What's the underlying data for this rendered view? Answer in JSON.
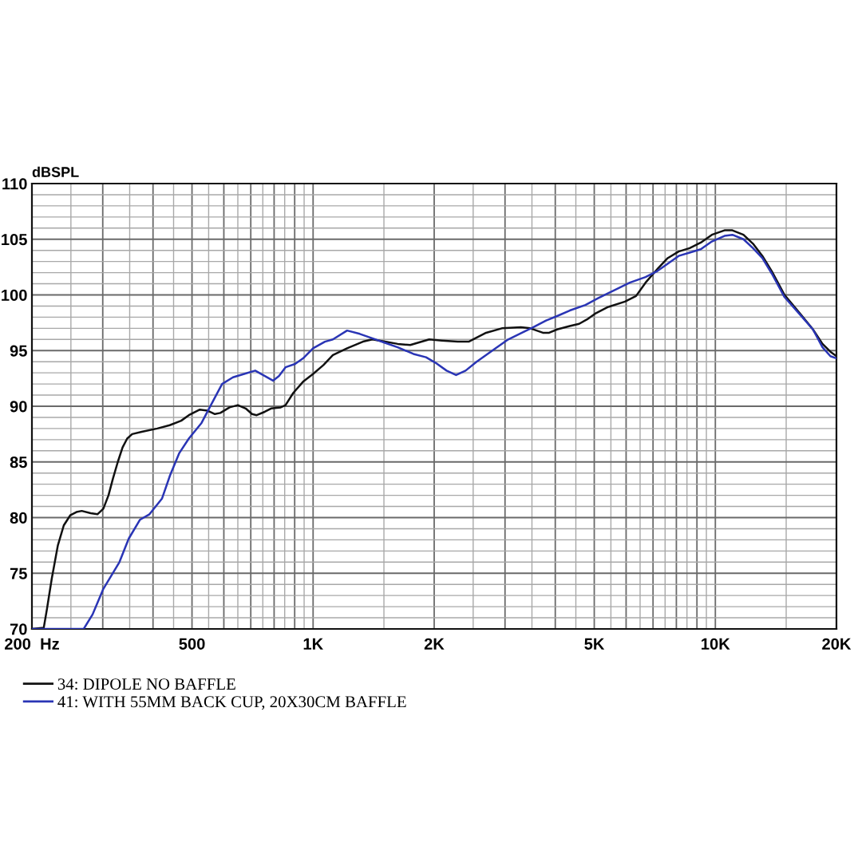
{
  "chart_data": {
    "type": "line",
    "ylabel": "dBSPL",
    "log": "x",
    "xlim": [
      200,
      20000
    ],
    "ylim": [
      70,
      110
    ],
    "xticks": [
      {
        "value": 200,
        "label": "200  Hz"
      },
      {
        "value": 250,
        "label": null
      },
      {
        "value": 300,
        "label": null
      },
      {
        "value": 350,
        "label": null
      },
      {
        "value": 400,
        "label": null
      },
      {
        "value": 450,
        "label": null
      },
      500,
      {
        "value": 550,
        "label": null
      },
      {
        "value": 600,
        "label": null
      },
      {
        "value": 650,
        "label": null
      },
      {
        "value": 700,
        "label": null
      },
      {
        "value": 750,
        "label": null
      },
      {
        "value": 800,
        "label": null
      },
      {
        "value": 850,
        "label": null
      },
      {
        "value": 900,
        "label": null
      },
      {
        "value": 950,
        "label": null
      },
      {
        "value": 1000,
        "label": "1K"
      },
      {
        "value": 1500,
        "label": null
      },
      {
        "value": 2000,
        "label": "2K"
      },
      {
        "value": 2500,
        "label": null
      },
      {
        "value": 3000,
        "label": null
      },
      {
        "value": 3500,
        "label": null
      },
      {
        "value": 4000,
        "label": null
      },
      {
        "value": 4500,
        "label": null
      },
      {
        "value": 5000,
        "label": "5K"
      },
      {
        "value": 5500,
        "label": null
      },
      {
        "value": 6000,
        "label": null
      },
      {
        "value": 6500,
        "label": null
      },
      {
        "value": 7000,
        "label": null
      },
      {
        "value": 7500,
        "label": null
      },
      {
        "value": 8000,
        "label": null
      },
      {
        "value": 8500,
        "label": null
      },
      {
        "value": 9000,
        "label": null
      },
      {
        "value": 9500,
        "label": null
      },
      {
        "value": 10000,
        "label": "10K"
      },
      {
        "value": 15000,
        "label": null
      },
      {
        "value": 20000,
        "label": "20K"
      }
    ],
    "yticks": [
      70,
      {
        "value": 71,
        "label": null
      },
      {
        "value": 72,
        "label": null
      },
      {
        "value": 73,
        "label": null
      },
      {
        "value": 74,
        "label": null
      },
      75,
      {
        "value": 76,
        "label": null
      },
      {
        "value": 77,
        "label": null
      },
      {
        "value": 78,
        "label": null
      },
      {
        "value": 79,
        "label": null
      },
      80,
      {
        "value": 81,
        "label": null
      },
      {
        "value": 82,
        "label": null
      },
      {
        "value": 83,
        "label": null
      },
      {
        "value": 84,
        "label": null
      },
      85,
      {
        "value": 86,
        "label": null
      },
      {
        "value": 87,
        "label": null
      },
      {
        "value": 88,
        "label": null
      },
      {
        "value": 89,
        "label": null
      },
      90,
      {
        "value": 91,
        "label": null
      },
      {
        "value": 92,
        "label": null
      },
      {
        "value": 93,
        "label": null
      },
      {
        "value": 94,
        "label": null
      },
      95,
      {
        "value": 96,
        "label": null
      },
      {
        "value": 97,
        "label": null
      },
      {
        "value": 98,
        "label": null
      },
      {
        "value": 99,
        "label": null
      },
      100,
      {
        "value": 101,
        "label": null
      },
      {
        "value": 102,
        "label": null
      },
      {
        "value": 103,
        "label": null
      },
      {
        "value": 104,
        "label": null
      },
      105,
      {
        "value": 106,
        "label": null
      },
      {
        "value": 107,
        "label": null
      },
      {
        "value": 108,
        "label": null
      },
      {
        "value": 109,
        "label": null
      },
      110
    ],
    "grid": true,
    "legend": "bottom",
    "line_style": "solid",
    "series": [
      {
        "name": "34: DIPOLE NO BAFFLE",
        "color": "#111111",
        "x": [
          200,
          214,
          218,
          224,
          232,
          240,
          249,
          258,
          266,
          280,
          291,
          301,
          310,
          318,
          327,
          336,
          345,
          355,
          375,
          410,
          440,
          470,
          491,
          523,
          547,
          570,
          588,
          620,
          650,
          680,
          705,
          724,
          758,
          786,
          831,
          854,
          893,
          944,
          1000,
          1061,
          1120,
          1215,
          1330,
          1404,
          1509,
          1623,
          1744,
          1944,
          2090,
          2288,
          2437,
          2692,
          2946,
          3285,
          3468,
          3726,
          3862,
          4042,
          4346,
          4585,
          4798,
          5018,
          5396,
          5961,
          6351,
          6706,
          7206,
          7610,
          8105,
          8634,
          9200,
          9802,
          10536,
          11024,
          11746,
          12403,
          13090,
          13822,
          14859,
          16265,
          17483,
          18466,
          19323,
          20000
        ],
        "values": [
          70.0,
          70.1,
          71.8,
          74.5,
          77.5,
          79.3,
          80.2,
          80.5,
          80.6,
          80.4,
          80.3,
          80.8,
          82.0,
          83.5,
          85.0,
          86.3,
          87.1,
          87.5,
          87.7,
          88.0,
          88.3,
          88.7,
          89.2,
          89.7,
          89.6,
          89.3,
          89.4,
          89.9,
          90.1,
          89.8,
          89.3,
          89.2,
          89.5,
          89.8,
          89.9,
          90.1,
          91.2,
          92.2,
          92.9,
          93.7,
          94.6,
          95.2,
          95.8,
          96.0,
          95.8,
          95.6,
          95.5,
          96.0,
          95.9,
          95.8,
          95.8,
          96.6,
          97.0,
          97.1,
          97.0,
          96.6,
          96.6,
          96.9,
          97.2,
          97.4,
          97.8,
          98.3,
          98.9,
          99.4,
          99.9,
          101.1,
          102.4,
          103.3,
          103.9,
          104.2,
          104.7,
          105.4,
          105.8,
          105.8,
          105.4,
          104.6,
          103.5,
          102.1,
          100.0,
          98.3,
          96.9,
          95.6,
          94.9,
          94.5
        ]
      },
      {
        "name": "41: WITH 55MM BACK CUP, 20X30CM BAFFLE",
        "color": "#2a35b5",
        "x": [
          200,
          269,
          283,
          301,
          330,
          348,
          371,
          392,
          421,
          441,
          465,
          491,
          528,
          557,
          594,
          632,
          674,
          718,
          751,
          795,
          822,
          854,
          902,
          944,
          1000,
          1070,
          1120,
          1215,
          1306,
          1404,
          1509,
          1623,
          1776,
          1909,
          2016,
          2147,
          2267,
          2394,
          2550,
          2790,
          3055,
          3344,
          3530,
          3794,
          4042,
          4346,
          4754,
          5110,
          5596,
          6126,
          6706,
          7142,
          7610,
          8105,
          8634,
          9200,
          9802,
          10536,
          11024,
          11746,
          12403,
          13090,
          13822,
          14859,
          16265,
          17483,
          18466,
          19323,
          20000
        ],
        "values": [
          70.0,
          70.0,
          71.3,
          73.6,
          76.0,
          78.1,
          79.8,
          80.3,
          81.7,
          83.8,
          85.8,
          87.1,
          88.5,
          90.1,
          92.0,
          92.6,
          92.9,
          93.2,
          92.8,
          92.3,
          92.7,
          93.5,
          93.8,
          94.3,
          95.2,
          95.8,
          96.0,
          96.8,
          96.5,
          96.1,
          95.7,
          95.3,
          94.7,
          94.4,
          93.9,
          93.2,
          92.8,
          93.2,
          94.0,
          95.0,
          96.0,
          96.7,
          97.1,
          97.7,
          98.1,
          98.6,
          99.1,
          99.7,
          100.4,
          101.1,
          101.6,
          102.1,
          102.8,
          103.5,
          103.8,
          104.1,
          104.8,
          105.3,
          105.4,
          105.0,
          104.2,
          103.3,
          101.9,
          99.8,
          98.2,
          96.9,
          95.3,
          94.5,
          94.3
        ]
      }
    ]
  }
}
